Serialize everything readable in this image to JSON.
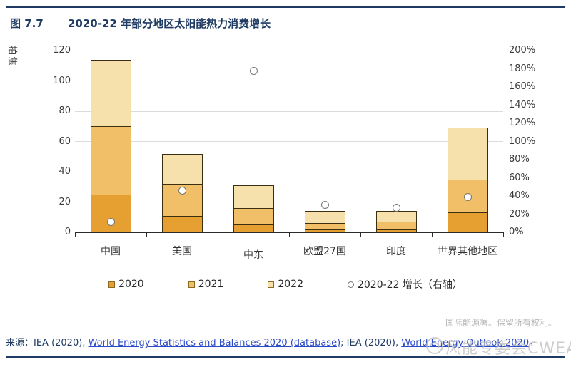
{
  "figure": {
    "label": "图 7.7",
    "title": "2020-22 年部分地区太阳能热力消费增长"
  },
  "chart_data": {
    "type": "bar",
    "stacked": true,
    "grid": true,
    "legend_position": "bottom",
    "unit_label": "拍焦",
    "categories": [
      "中国",
      "美国",
      "中东",
      "欧盟27国",
      "印度",
      "世界其他地区"
    ],
    "series": [
      {
        "name": "2020",
        "color": "#E6A032",
        "values": [
          25,
          11,
          5,
          2,
          2,
          13
        ]
      },
      {
        "name": "2021",
        "color": "#F0BF68",
        "values": [
          45,
          21,
          11,
          4,
          5,
          22
        ]
      },
      {
        "name": "2022",
        "color": "#F6E0AC",
        "values": [
          44,
          20,
          15,
          8,
          7,
          34
        ]
      }
    ],
    "totals_2022": [
      114,
      52,
      31,
      14,
      14,
      69
    ],
    "growth_series": {
      "name": "2020-22 增长（右轴）",
      "axis": "right",
      "values_pct": [
        11,
        46,
        178,
        30,
        27,
        39
      ]
    },
    "left_axis": {
      "label": "拍焦",
      "min": 0,
      "max": 120,
      "step": 20,
      "ticks": [
        0,
        20,
        40,
        60,
        80,
        100,
        120
      ]
    },
    "right_axis": {
      "min": 0,
      "max": 200,
      "step": 20,
      "ticks_pct": [
        0,
        20,
        40,
        60,
        80,
        100,
        120,
        140,
        160,
        180,
        200
      ]
    }
  },
  "footer": {
    "rights": "国际能源署。保留所有权利。",
    "source": {
      "prefix": "来源：IEA (2020), ",
      "link1": "World Energy Statistics and Balances 2020 (database)",
      "middle": "; IEA (2020), ",
      "link2": "World Energy Outlook 2020",
      "suffix": "。"
    }
  },
  "watermark": {
    "text": "风能专委会CWEA"
  },
  "colors": {
    "navy": "#1F3B63",
    "link_blue": "#2B4BC8",
    "bar_border": "#3A2F10",
    "grid": "#DCDCDC",
    "marker_fill": "#FFFFFF",
    "marker_border": "#767676"
  }
}
